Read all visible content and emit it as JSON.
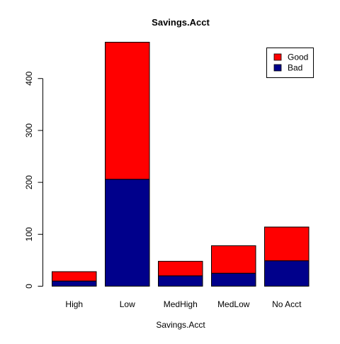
{
  "chart_data": {
    "type": "bar",
    "stacked": true,
    "title": "Savings.Acct",
    "xlabel": "Savings.Acct",
    "ylabel": "",
    "categories": [
      "High",
      "Low",
      "MedHigh",
      "MedLow",
      "No Acct"
    ],
    "series": [
      {
        "name": "Bad",
        "color": "#00008B",
        "values": [
          10,
          206,
          20,
          25,
          49
        ]
      },
      {
        "name": "Good",
        "color": "#FF0000",
        "values": [
          18,
          264,
          28,
          53,
          65
        ]
      }
    ],
    "ylim": [
      0,
      470
    ],
    "yticks": [
      0,
      100,
      200,
      300,
      400
    ],
    "grid": false,
    "legend_position": "top-right",
    "legend": [
      {
        "label": "Good",
        "color": "#FF0000"
      },
      {
        "label": "Bad",
        "color": "#00008B"
      }
    ]
  }
}
